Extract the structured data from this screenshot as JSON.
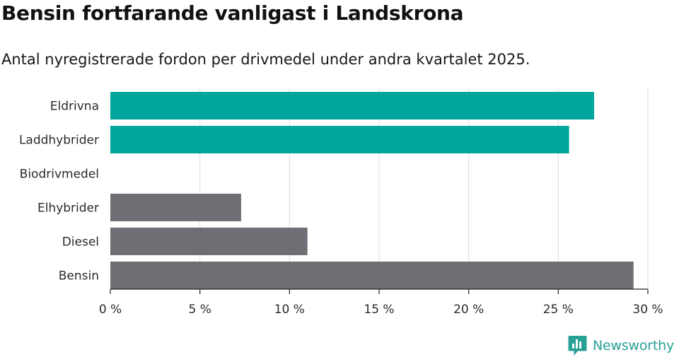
{
  "header": {
    "title": "Bensin fortfarande vanligast i Landskrona",
    "subtitle": "Antal nyregistrerade fordon per drivmedel under andra kvartalet 2025."
  },
  "brand": {
    "name": "Newsworthy",
    "color": "#27a096",
    "icon": "newsworthy-logo-icon"
  },
  "chart_data": {
    "type": "bar",
    "orientation": "horizontal",
    "categories": [
      "Eldrivna",
      "Laddhybrider",
      "Biodrivmedel",
      "Elhybrider",
      "Diesel",
      "Bensin"
    ],
    "values": [
      27.0,
      25.6,
      0,
      7.3,
      11.0,
      29.2
    ],
    "colors": [
      "#00a59b",
      "#00a59b",
      "#00a59b",
      "#6e6e74",
      "#6e6e74",
      "#6e6e74"
    ],
    "xlim": [
      0,
      30
    ],
    "xticks": [
      0,
      5,
      10,
      15,
      20,
      25,
      30
    ],
    "tick_suffix": " %",
    "grid": true,
    "title": "",
    "xlabel": "",
    "ylabel": ""
  }
}
